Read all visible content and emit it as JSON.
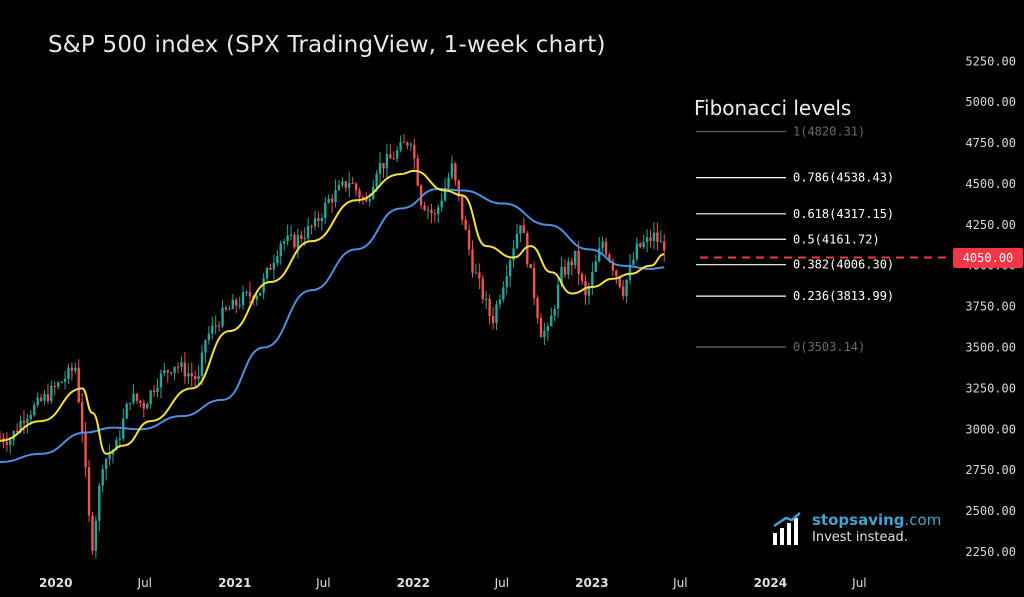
{
  "title": "S&P 500 index (SPX TradingView, 1-week chart)",
  "fib_title": "Fibonacci levels",
  "brand": {
    "name": "stopsaving",
    "suffix": ".com",
    "tagline": "Invest instead."
  },
  "chart_data": {
    "type": "candlestick",
    "title": "S&P 500 index (SPX TradingView, 1-week chart)",
    "interval": "1 week",
    "y_ticks": [
      5250,
      5000,
      4750,
      4500,
      4250,
      4000,
      3750,
      3500,
      3250,
      3000,
      2750,
      2500,
      2250
    ],
    "y_tick_labels": [
      "5250.00",
      "5000.00",
      "4750.00",
      "4500.00",
      "4250.00",
      "4000.00",
      "3750.00",
      "3500.00",
      "3250.00",
      "3000.00",
      "2750.00",
      "2500.00",
      "2250.00"
    ],
    "ylim": [
      2170,
      5380
    ],
    "x_labels": [
      "2020",
      "Jul",
      "2021",
      "Jul",
      "2022",
      "Jul",
      "2023",
      "Jul",
      "2024",
      "Jul"
    ],
    "x_bold": [
      true,
      false,
      true,
      false,
      true,
      false,
      true,
      false,
      true,
      false
    ],
    "xlim": [
      "2019-09-09",
      "2024-12-23"
    ],
    "current_price": 4050.0,
    "current_price_label": "4050.00",
    "colors": {
      "up": "#26a69a",
      "down": "#ef5350",
      "ma_fast": "#f5e13c",
      "ma_slow": "#4a8fe0",
      "current_price": "#f23645",
      "fib_line": "#ffffff",
      "fib_dim": "#555555"
    },
    "fibonacci": [
      {
        "label": "1(4820.31)",
        "value": 4820.31,
        "dim": true
      },
      {
        "label": "0.786(4538.43)",
        "value": 4538.43,
        "dim": false
      },
      {
        "label": "0.618(4317.15)",
        "value": 4317.15,
        "dim": false
      },
      {
        "label": "0.5(4161.72)",
        "value": 4161.72,
        "dim": false
      },
      {
        "label": "0.382(4006.30)",
        "value": 4006.3,
        "dim": false
      },
      {
        "label": "0.236(3813.99)",
        "value": 3813.99,
        "dim": false
      },
      {
        "label": "0(3503.14)",
        "value": 3503.14,
        "dim": true
      }
    ],
    "price_path": [
      [
        "2019-09-09",
        2950
      ],
      [
        "2019-10-07",
        2940
      ],
      [
        "2019-11-04",
        3080
      ],
      [
        "2019-12-02",
        3150
      ],
      [
        "2020-01-06",
        3250
      ],
      [
        "2020-02-17",
        3380
      ],
      [
        "2020-03-02",
        3000
      ],
      [
        "2020-03-16",
        2450
      ],
      [
        "2020-03-23",
        2300
      ],
      [
        "2020-04-13",
        2800
      ],
      [
        "2020-05-11",
        2900
      ],
      [
        "2020-06-08",
        3200
      ],
      [
        "2020-07-06",
        3150
      ],
      [
        "2020-08-03",
        3300
      ],
      [
        "2020-09-07",
        3400
      ],
      [
        "2020-10-26",
        3300
      ],
      [
        "2020-11-09",
        3550
      ],
      [
        "2020-12-14",
        3700
      ],
      [
        "2021-01-25",
        3800
      ],
      [
        "2021-03-01",
        3850
      ],
      [
        "2021-04-12",
        4150
      ],
      [
        "2021-05-10",
        4150
      ],
      [
        "2021-06-21",
        4250
      ],
      [
        "2021-07-19",
        4400
      ],
      [
        "2021-08-30",
        4520
      ],
      [
        "2021-10-04",
        4380
      ],
      [
        "2021-10-25",
        4600
      ],
      [
        "2021-11-22",
        4650
      ],
      [
        "2022-01-03",
        4780
      ],
      [
        "2022-01-24",
        4400
      ],
      [
        "2022-02-21",
        4300
      ],
      [
        "2022-03-28",
        4600
      ],
      [
        "2022-05-09",
        4000
      ],
      [
        "2022-06-13",
        3700
      ],
      [
        "2022-06-20",
        3680
      ],
      [
        "2022-08-15",
        4280
      ],
      [
        "2022-09-26",
        3600
      ],
      [
        "2022-10-10",
        3590
      ],
      [
        "2022-11-07",
        3950
      ],
      [
        "2022-12-05",
        4050
      ],
      [
        "2022-12-26",
        3800
      ],
      [
        "2023-01-30",
        4150
      ],
      [
        "2023-03-13",
        3850
      ],
      [
        "2023-04-10",
        4100
      ],
      [
        "2023-05-15",
        4180
      ],
      [
        "2023-05-29",
        4130
      ]
    ],
    "ma_fast": [
      [
        "2019-09-09",
        2930
      ],
      [
        "2019-12-02",
        3050
      ],
      [
        "2020-02-24",
        3250
      ],
      [
        "2020-03-16",
        3100
      ],
      [
        "2020-04-13",
        2850
      ],
      [
        "2020-05-18",
        2900
      ],
      [
        "2020-07-13",
        3050
      ],
      [
        "2020-10-05",
        3250
      ],
      [
        "2020-12-21",
        3600
      ],
      [
        "2021-03-15",
        3900
      ],
      [
        "2021-06-07",
        4150
      ],
      [
        "2021-09-06",
        4400
      ],
      [
        "2021-12-06",
        4560
      ],
      [
        "2022-01-03",
        4580
      ],
      [
        "2022-03-07",
        4460
      ],
      [
        "2022-04-11",
        4430
      ],
      [
        "2022-05-30",
        4120
      ],
      [
        "2022-07-25",
        4050
      ],
      [
        "2022-08-29",
        4120
      ],
      [
        "2022-10-10",
        3960
      ],
      [
        "2022-11-21",
        3830
      ],
      [
        "2023-01-02",
        3870
      ],
      [
        "2023-02-13",
        3920
      ],
      [
        "2023-03-20",
        3950
      ],
      [
        "2023-05-01",
        4000
      ],
      [
        "2023-05-29",
        4070
      ]
    ],
    "ma_slow": [
      [
        "2019-09-09",
        2800
      ],
      [
        "2019-12-02",
        2850
      ],
      [
        "2020-03-02",
        2980
      ],
      [
        "2020-04-27",
        3010
      ],
      [
        "2020-06-22",
        3000
      ],
      [
        "2020-09-14",
        3080
      ],
      [
        "2020-12-07",
        3180
      ],
      [
        "2021-03-01",
        3500
      ],
      [
        "2021-06-07",
        3850
      ],
      [
        "2021-09-06",
        4100
      ],
      [
        "2021-12-06",
        4350
      ],
      [
        "2022-02-21",
        4470
      ],
      [
        "2022-04-11",
        4460
      ],
      [
        "2022-07-04",
        4380
      ],
      [
        "2022-10-03",
        4250
      ],
      [
        "2022-12-26",
        4100
      ],
      [
        "2023-03-06",
        4000
      ],
      [
        "2023-05-01",
        3980
      ],
      [
        "2023-05-29",
        3990
      ]
    ]
  }
}
